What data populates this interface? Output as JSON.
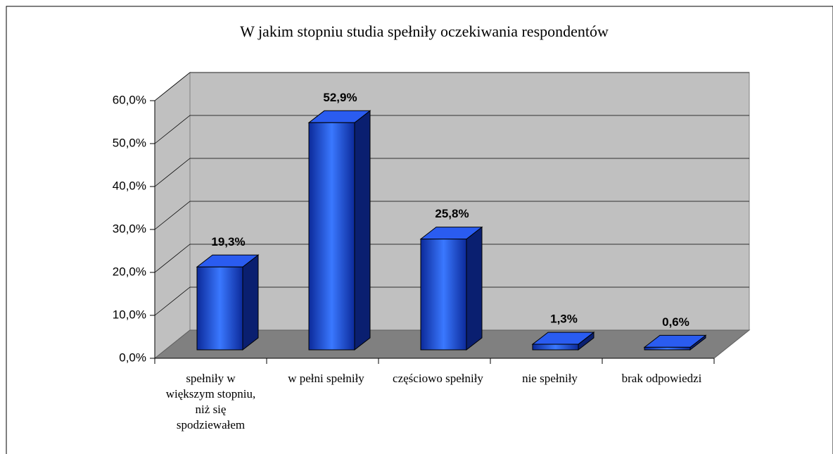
{
  "chart_data": {
    "type": "bar3d",
    "title": "W jakim stopniu studia spełniły oczekiwania respondentów",
    "categories": [
      "spełniły w większym stopniu, niż się spodziewałem",
      "w pełni spełniły",
      "częściowo spełniły",
      "nie spełniły",
      "brak odpowiedzi"
    ],
    "values": [
      19.3,
      52.9,
      25.8,
      1.3,
      0.6
    ],
    "value_labels": [
      "19,3%",
      "52,9%",
      "25,8%",
      "1,3%",
      "0,6%"
    ],
    "color": "#2550e0",
    "ylim": [
      0,
      60
    ],
    "yticks": [
      {
        "value": 0,
        "label": "0,0%"
      },
      {
        "value": 10,
        "label": "10,0%"
      },
      {
        "value": 20,
        "label": "20,0%"
      },
      {
        "value": 30,
        "label": "30,0%"
      },
      {
        "value": 40,
        "label": "40,0%"
      },
      {
        "value": 50,
        "label": "50,0%"
      },
      {
        "value": 60,
        "label": "60,0%"
      }
    ],
    "grid": true
  }
}
